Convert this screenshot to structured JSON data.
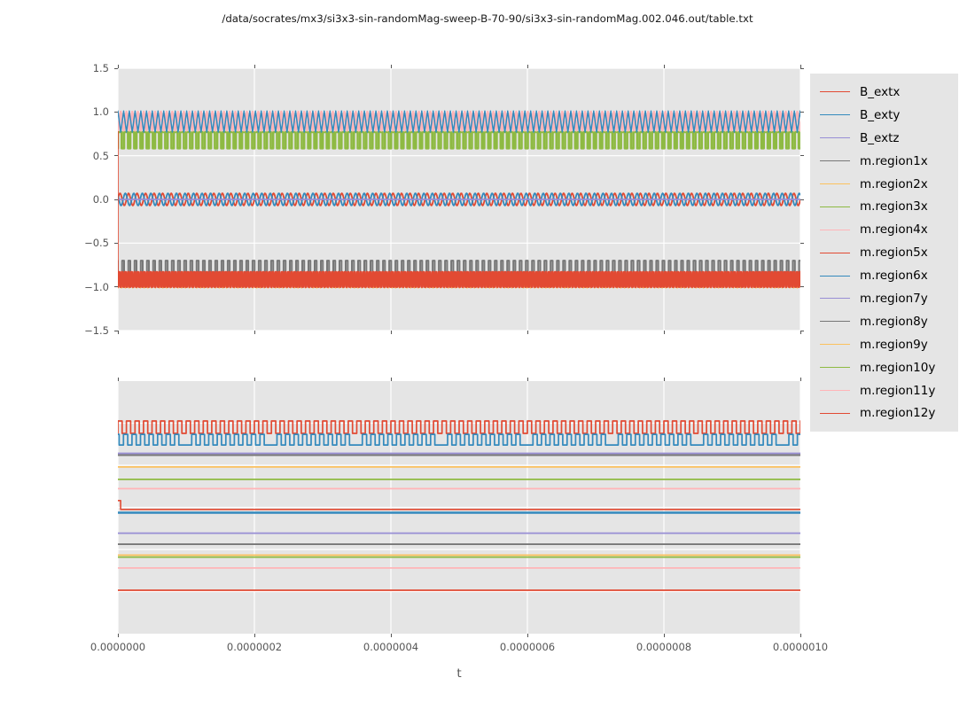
{
  "title": "/data/socrates/mx3/si3x3-sin-randomMag-sweep-B-70-90/si3x3-sin-randomMag.002.046.out/table.txt",
  "xlabel": "t",
  "figure": {
    "background": "#ffffff",
    "axes_background": "#E5E5E5",
    "grid_color": "#ffffff",
    "tick_color": "#555555",
    "label_color": "#555555",
    "title_color": "#1a1a1a",
    "legend_text_color": "#000000"
  },
  "palette": {
    "red": "#E24A33",
    "blue": "#348ABD",
    "purple": "#988ED5",
    "gray": "#777777",
    "orange": "#FBC15E",
    "green": "#8EBA42",
    "pink": "#FFB5B8"
  },
  "legend": {
    "entries": [
      {
        "label": "B_extx",
        "color": "#E24A33"
      },
      {
        "label": "B_exty",
        "color": "#348ABD"
      },
      {
        "label": "B_extz",
        "color": "#988ED5"
      },
      {
        "label": "m.region1x",
        "color": "#777777"
      },
      {
        "label": "m.region2x",
        "color": "#FBC15E"
      },
      {
        "label": "m.region3x",
        "color": "#8EBA42"
      },
      {
        "label": "m.region4x",
        "color": "#FFB5B8"
      },
      {
        "label": "m.region5x",
        "color": "#E24A33"
      },
      {
        "label": "m.region6x",
        "color": "#348ABD"
      },
      {
        "label": "m.region7y",
        "color": "#988ED5"
      },
      {
        "label": "m.region8y",
        "color": "#777777"
      },
      {
        "label": "m.region9y",
        "color": "#FBC15E"
      },
      {
        "label": "m.region10y",
        "color": "#8EBA42"
      },
      {
        "label": "m.region11y",
        "color": "#FFB5B8"
      },
      {
        "label": "m.region12y",
        "color": "#E24A33"
      }
    ]
  },
  "axis": {
    "x": {
      "values": [
        0,
        2e-07,
        4e-07,
        6e-07,
        8e-07,
        1e-06
      ],
      "labels": [
        "0.0000000",
        "0.0000002",
        "0.0000004",
        "0.0000006",
        "0.0000008",
        "0.0000010"
      ]
    },
    "y_top": {
      "values": [
        1.5,
        1.0,
        0.5,
        0.0,
        -0.5,
        -1.0,
        -1.5
      ],
      "labels": [
        "1.5",
        "1.0",
        "0.5",
        "0.0",
        "−0.5",
        "−1.0",
        "−1.5"
      ]
    }
  },
  "chart_data": [
    {
      "id": "top",
      "type": "line",
      "xlabel": "t",
      "xlim": [
        0,
        1e-06
      ],
      "ylim": [
        -1.5,
        1.5
      ],
      "grid": true,
      "grid_x": [
        0,
        2e-07,
        4e-07,
        6e-07,
        8e-07,
        1e-06
      ],
      "grid_y": [
        1.5,
        1.0,
        0.5,
        0.0,
        -0.5,
        -1.0,
        -1.5
      ],
      "series": [
        {
          "name": "B_extx",
          "color": "#E24A33",
          "lw": 1.8,
          "type": "sine",
          "center": 0.0,
          "amp": 0.07,
          "period": 1.25e-08,
          "phase": 0
        },
        {
          "name": "B_exty",
          "color": "#348ABD",
          "lw": 1.8,
          "type": "sine",
          "center": 0.0,
          "amp": 0.07,
          "period": 1.25e-08,
          "phase": 2.4
        },
        {
          "name": "B_extz",
          "color": "#988ED5",
          "lw": 1.8,
          "type": "flat",
          "y": 0.0
        },
        {
          "name": "m.region1x",
          "color": "#777777",
          "lw": 2.0,
          "type": "comb",
          "base": -0.88,
          "tip": -0.7,
          "period": 9.1e-09,
          "tipFrac": 0.32
        },
        {
          "name": "m.region2x",
          "color": "#FBC15E",
          "lw": 1.8,
          "type": "zigzag",
          "lo": -1.01,
          "hi": -0.88,
          "period": 5.5e-09,
          "phases": [
            0
          ]
        },
        {
          "name": "m.region3x",
          "color": "#8EBA42",
          "lw": 2.6,
          "type": "comb",
          "base": 0.77,
          "tip": 0.585,
          "period": 9.1e-09,
          "tipFrac": 0.38
        },
        {
          "name": "m.region4x",
          "color": "#FFB5B8",
          "lw": 2.8,
          "type": "zigzag",
          "lo": 0.79,
          "hi": 1.0,
          "period": 8.4e-09,
          "phases": [
            0
          ]
        },
        {
          "name": "m.region5x",
          "color": "#E24A33",
          "lw": 2.4,
          "type": "zigzag",
          "lo": -1.0,
          "hi": -0.83,
          "period": 4.6e-09,
          "phases": [
            0,
            0.28
          ]
        },
        {
          "name": "m.region6x",
          "color": "#348ABD",
          "lw": 1.5,
          "type": "zigzag",
          "lo": 0.77,
          "hi": 1.01,
          "period": 8.4e-09,
          "phases": [
            0.5
          ]
        },
        {
          "name": "initial-transient",
          "color": "#E24A33",
          "lw": 1.6,
          "type": "vline",
          "t": 0,
          "from": -1.0,
          "to": 0.78
        }
      ]
    },
    {
      "id": "bottom",
      "type": "line",
      "note": "no y tick labels shown; y values are axis fractions (0 = bottom, 1 = top)",
      "xlim": [
        0,
        1e-06
      ],
      "ylim": [
        0,
        1
      ],
      "grid": true,
      "grid_x": [
        0,
        2e-07,
        4e-07,
        6e-07,
        8e-07,
        1e-06
      ],
      "grid_y": [
        0.1667,
        0.3333,
        0.5,
        0.6667,
        0.8333
      ],
      "series": [
        {
          "name": "red-square-wave",
          "color": "#E24A33",
          "lw": 1.7,
          "type": "square",
          "hi": 0.842,
          "lo": 0.793,
          "period": 1.25e-08,
          "duty": 0.5,
          "phaseFrac": 0.0
        },
        {
          "name": "blue-square-wave",
          "color": "#348ABD",
          "lw": 1.7,
          "type": "square",
          "hi": 0.789,
          "lo": 0.747,
          "period": 1.25e-08,
          "duty": 0.5,
          "phaseFrac": 0.35,
          "dropEvery": 10
        },
        {
          "name": "gray-flat-1",
          "color": "#777777",
          "lw": 2.0,
          "type": "flat",
          "y": 0.707
        },
        {
          "name": "purple-flat-1",
          "color": "#988ED5",
          "lw": 1.7,
          "type": "flat",
          "y": 0.714
        },
        {
          "name": "orange-flat-1",
          "color": "#FBC15E",
          "lw": 1.7,
          "type": "flat",
          "y": 0.66
        },
        {
          "name": "green-flat-1",
          "color": "#8EBA42",
          "lw": 1.7,
          "type": "flat",
          "y": 0.611
        },
        {
          "name": "pink-flat-1",
          "color": "#FFB5B8",
          "lw": 1.7,
          "type": "flat",
          "y": 0.574
        },
        {
          "name": "blue-flat-2",
          "color": "#348ABD",
          "lw": 2.4,
          "type": "flat",
          "y": 0.479
        },
        {
          "name": "red-step",
          "color": "#E24A33",
          "lw": 1.6,
          "type": "step",
          "y0": 0.527,
          "y1": 0.492,
          "t": 4e-09
        },
        {
          "name": "purple-flat-2",
          "color": "#988ED5",
          "lw": 1.7,
          "type": "flat",
          "y": 0.398
        },
        {
          "name": "gray-flat-2",
          "color": "#777777",
          "lw": 1.9,
          "type": "flat",
          "y": 0.354
        },
        {
          "name": "green-flat-2",
          "color": "#8EBA42",
          "lw": 1.7,
          "type": "flat",
          "y": 0.303
        },
        {
          "name": "orange-flat-2",
          "color": "#FBC15E",
          "lw": 1.7,
          "type": "flat",
          "y": 0.311
        },
        {
          "name": "pink-flat-2",
          "color": "#FFB5B8",
          "lw": 1.7,
          "type": "flat",
          "y": 0.26
        },
        {
          "name": "red-flat-3",
          "color": "#E24A33",
          "lw": 1.7,
          "type": "flat",
          "y": 0.172
        }
      ]
    }
  ]
}
